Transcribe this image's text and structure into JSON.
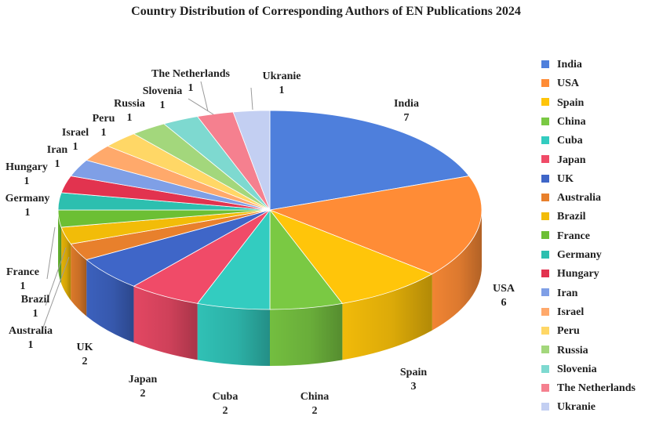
{
  "chart_data": {
    "type": "pie",
    "title": "Country Distribution of Corresponding Authors of EN Publications 2024",
    "legend_position": "right",
    "slices": [
      {
        "label": "India",
        "value": 7,
        "color": "#4E7FDC"
      },
      {
        "label": "USA",
        "value": 6,
        "color": "#FF8C36"
      },
      {
        "label": "Spain",
        "value": 3,
        "color": "#FFC50A"
      },
      {
        "label": "China",
        "value": 2,
        "color": "#7AC943"
      },
      {
        "label": "Cuba",
        "value": 2,
        "color": "#33CCC0"
      },
      {
        "label": "Japan",
        "value": 2,
        "color": "#F04B68"
      },
      {
        "label": "UK",
        "value": 2,
        "color": "#3F66C8"
      },
      {
        "label": "Australia",
        "value": 1,
        "color": "#E8802C"
      },
      {
        "label": "Brazil",
        "value": 1,
        "color": "#F2BC08"
      },
      {
        "label": "France",
        "value": 1,
        "color": "#6CBF34"
      },
      {
        "label": "Germany",
        "value": 1,
        "color": "#2DBFAF"
      },
      {
        "label": "Hungary",
        "value": 1,
        "color": "#E2334F"
      },
      {
        "label": "Iran",
        "value": 1,
        "color": "#7F9FE6"
      },
      {
        "label": "Israel",
        "value": 1,
        "color": "#FFA96B"
      },
      {
        "label": "Peru",
        "value": 1,
        "color": "#FFD766"
      },
      {
        "label": "Russia",
        "value": 1,
        "color": "#A3D77C"
      },
      {
        "label": "Slovenia",
        "value": 1,
        "color": "#7ED9D0"
      },
      {
        "label": "The Netherlands",
        "value": 1,
        "color": "#F5808F"
      },
      {
        "label": "Ukranie",
        "value": 1,
        "color": "#C3CFF2"
      }
    ]
  }
}
